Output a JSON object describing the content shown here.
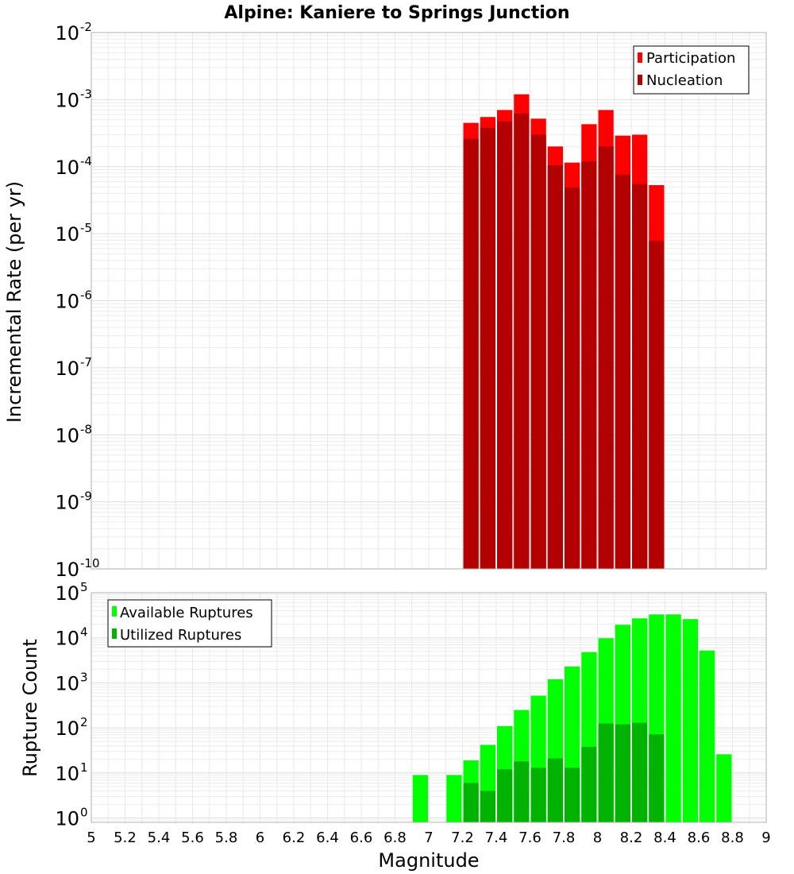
{
  "chart_data": [
    {
      "type": "bar",
      "title": "Alpine: Kaniere to Springs Junction",
      "xlabel": "",
      "ylabel": "Incremental Rate (per yr)",
      "yscale": "log",
      "ylim": [
        1e-10,
        0.01
      ],
      "xlim": [
        5,
        9
      ],
      "grid": true,
      "legend_position": "top-right",
      "x": [
        7.25,
        7.35,
        7.45,
        7.55,
        7.65,
        7.75,
        7.85,
        7.95,
        8.05,
        8.15,
        8.25,
        8.35
      ],
      "series": [
        {
          "name": "Participation",
          "color": "#ff0000",
          "values": [
            0.00045,
            0.00055,
            0.0007,
            0.0012,
            0.00052,
            0.0002,
            0.000115,
            0.00043,
            0.0007,
            0.00029,
            0.0003,
            5.3e-05
          ]
        },
        {
          "name": "Nucleation",
          "color": "#b30000",
          "values": [
            0.00026,
            0.00038,
            0.00047,
            0.00062,
            0.0003,
            0.000105,
            4.9e-05,
            0.00012,
            0.0002,
            7.6e-05,
            5.5e-05,
            7.8e-06
          ]
        }
      ],
      "y_ticks": [
        {
          "base": "10",
          "exp": "-10"
        },
        {
          "base": "10",
          "exp": "-9"
        },
        {
          "base": "10",
          "exp": "-8"
        },
        {
          "base": "10",
          "exp": "-7"
        },
        {
          "base": "10",
          "exp": "-6"
        },
        {
          "base": "10",
          "exp": "-5"
        },
        {
          "base": "10",
          "exp": "-4"
        },
        {
          "base": "10",
          "exp": "-3"
        },
        {
          "base": "10",
          "exp": "-2"
        }
      ]
    },
    {
      "type": "bar",
      "title": "",
      "xlabel": "Magnitude",
      "ylabel": "Rupture Count",
      "yscale": "log",
      "ylim": [
        0.8,
        100000
      ],
      "xlim": [
        5,
        9
      ],
      "grid": true,
      "legend_position": "top-left",
      "x": [
        6.95,
        7.05,
        7.15,
        7.25,
        7.35,
        7.45,
        7.55,
        7.65,
        7.75,
        7.85,
        7.95,
        8.05,
        8.15,
        8.25,
        8.35,
        8.45,
        8.55,
        8.65,
        8.75
      ],
      "series": [
        {
          "name": "Available Ruptures",
          "color": "#00ff00",
          "values": [
            9,
            0,
            9,
            19,
            42,
            110,
            250,
            520,
            1200,
            2300,
            4800,
            9800,
            19500,
            27000,
            33000,
            33000,
            26000,
            5200,
            26
          ]
        },
        {
          "name": "Utilized Ruptures",
          "color": "#00b300",
          "values": [
            0,
            0,
            0,
            6,
            4,
            12,
            18,
            13,
            21,
            13,
            38,
            125,
            120,
            130,
            72,
            0,
            0,
            0,
            0
          ]
        }
      ],
      "x_ticks": [
        "5",
        "5.2",
        "5.4",
        "5.6",
        "5.8",
        "6",
        "6.2",
        "6.4",
        "6.6",
        "6.8",
        "7",
        "7.2",
        "7.4",
        "7.6",
        "7.8",
        "8",
        "8.2",
        "8.4",
        "8.6",
        "8.8",
        "9"
      ],
      "y_ticks": [
        {
          "base": "10",
          "exp": "0"
        },
        {
          "base": "10",
          "exp": "1"
        },
        {
          "base": "10",
          "exp": "2"
        },
        {
          "base": "10",
          "exp": "3"
        },
        {
          "base": "10",
          "exp": "4"
        },
        {
          "base": "10",
          "exp": "5"
        }
      ]
    }
  ]
}
